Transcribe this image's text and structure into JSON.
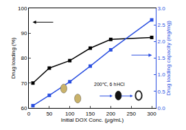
{
  "chart_data": {
    "type": "line",
    "x_label": "Initial DOX Conc. (μg/mL)",
    "y_label": "Drug loading (%)",
    "y2_label": "Drug loading capacity (mg/mg)",
    "x": [
      10,
      50,
      100,
      150,
      200,
      300
    ],
    "series": [
      {
        "name": "Drug loading (%)",
        "color": "#000000",
        "marker": "square",
        "values": [
          70,
          76,
          79,
          84,
          87.5,
          88.3
        ]
      },
      {
        "name": "Drug loading capacity (mg/mg)",
        "color": "#2a4fe0",
        "marker": "square",
        "axis": "y2",
        "values": [
          0.07,
          0.38,
          0.79,
          1.26,
          1.75,
          2.65
        ]
      }
    ],
    "xlim": [
      0,
      310
    ],
    "xticks": [
      0,
      50,
      100,
      150,
      200,
      250,
      300
    ],
    "ylim": [
      60,
      100
    ],
    "yticks": [
      60,
      70,
      80,
      90,
      100
    ],
    "y2lim": [
      0,
      3
    ],
    "y2ticks": [
      {
        "value": 0,
        "label": "0.0"
      },
      {
        "value": 0.5,
        "label": "0.5"
      },
      {
        "value": 1,
        "label": "1.0"
      },
      {
        "value": 1.5,
        "label": "1.5"
      },
      {
        "value": 2,
        "label": "2.0"
      },
      {
        "value": 2.5,
        "label": "2.5"
      },
      {
        "value": 3,
        "label": "3.0"
      }
    ],
    "annotations": [
      "200℃, 6 h",
      "HCl"
    ],
    "grid": false
  }
}
